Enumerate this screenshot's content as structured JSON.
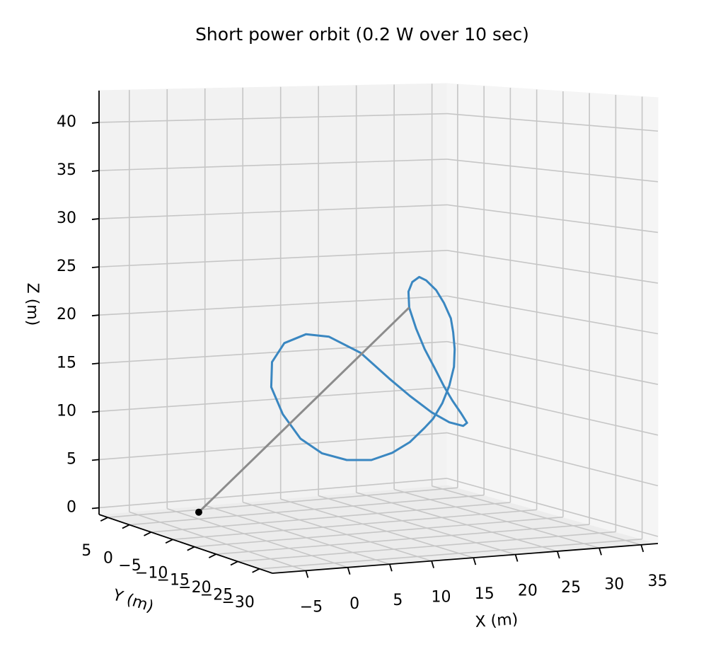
{
  "chart_data": {
    "type": "line3d",
    "title": "Short power orbit (0.2 W over 10 sec)",
    "xlabel": "X (m)",
    "ylabel": "Y (m)",
    "zlabel": "Z (m)",
    "xlim": [
      -9,
      37
    ],
    "ylim": [
      -33,
      7
    ],
    "zlim": [
      -0.7,
      43.3
    ],
    "xticks": [
      {
        "value": -5,
        "label": "−5"
      },
      0,
      5,
      10,
      15,
      20,
      25,
      30,
      35
    ],
    "yticks": [
      {
        "value": -30,
        "label": "−30"
      },
      {
        "value": -25,
        "label": "−25"
      },
      {
        "value": -20,
        "label": "−20"
      },
      {
        "value": -15,
        "label": "−15"
      },
      {
        "value": -10,
        "label": "−10"
      },
      {
        "value": -5,
        "label": "−5"
      },
      0,
      5
    ],
    "zticks": [
      0,
      5,
      10,
      15,
      20,
      25,
      30,
      35,
      40
    ],
    "grid": true,
    "series": [
      {
        "color": "#3a87c1",
        "x": [
          27.3,
          27.2,
          27.7,
          28.6,
          29.5,
          30.8,
          31.8,
          32.7,
          33.0,
          33.2,
          33.1,
          32.5,
          31.6,
          30.4,
          29.3,
          27.4,
          25.1,
          22.4,
          19.2,
          16.0,
          13.2,
          10.9,
          9.4,
          9.5,
          11.1,
          13.9,
          16.9,
          21.0,
          24.7,
          27.4,
          30.2,
          32.5,
          34.3,
          34.8,
          34.0,
          32.9,
          31.8,
          30.6,
          29.3,
          28.2,
          27.3
        ],
        "y": [
          0,
          0,
          0,
          0,
          0,
          0,
          0,
          0,
          0,
          0,
          0,
          0,
          0,
          0,
          0,
          0,
          0,
          0,
          0,
          0,
          0,
          0,
          0,
          0,
          0,
          0,
          0,
          0,
          0,
          0,
          0,
          0,
          0,
          0,
          0,
          0,
          0,
          0,
          0,
          0,
          0
        ],
        "z": [
          19.9,
          21.6,
          22.6,
          23.1,
          22.7,
          21.6,
          20.2,
          18.5,
          17.0,
          15.2,
          13.3,
          11.3,
          9.5,
          7.9,
          7.0,
          5.6,
          4.6,
          4.0,
          4.2,
          5.1,
          6.8,
          9.5,
          12.4,
          15.0,
          16.9,
          17.7,
          17.3,
          15.4,
          12.5,
          10.5,
          8.6,
          7.4,
          6.9,
          7.2,
          8.3,
          9.7,
          11.3,
          13.3,
          15.4,
          17.6,
          19.9
        ]
      },
      {
        "color": "#8c8c8c",
        "x": [
          0,
          27.3
        ],
        "y": [
          0,
          0
        ],
        "z": [
          0,
          19.9
        ]
      }
    ],
    "points": {
      "color": "#000000",
      "x": [
        0
      ],
      "y": [
        0
      ],
      "z": [
        0
      ]
    }
  }
}
